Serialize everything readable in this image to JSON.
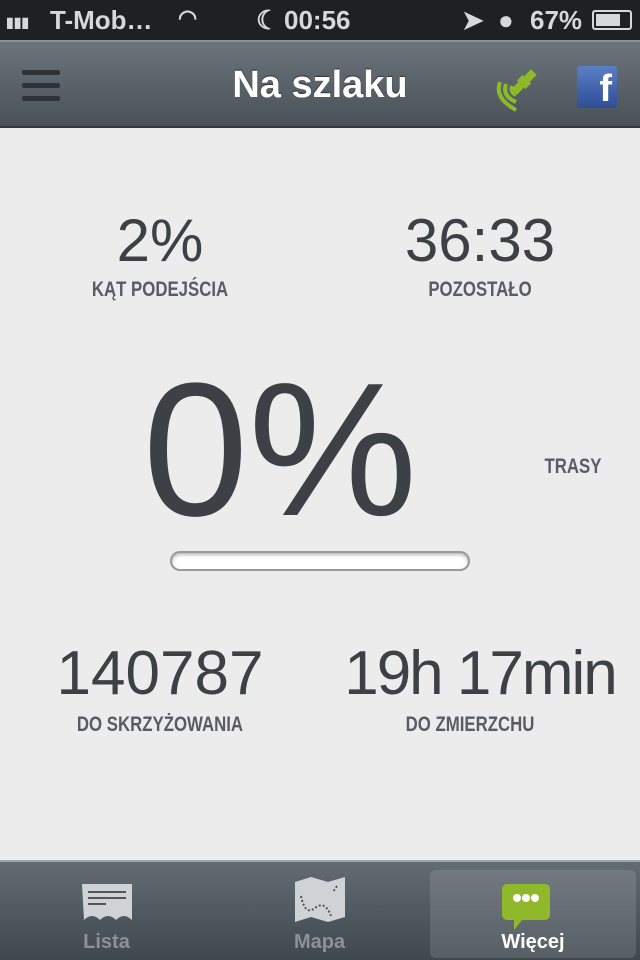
{
  "status_bar": {
    "carrier": "T-Mob…",
    "time": "00:56",
    "battery": "67%"
  },
  "nav": {
    "title": "Na szlaku"
  },
  "stats": {
    "angle": {
      "value": "2%",
      "label": "KĄT PODEJŚCIA"
    },
    "remaining": {
      "value": "36:33",
      "label": "POZOSTAŁO"
    },
    "progress": {
      "value": "0%",
      "label": "TRASY",
      "fraction": 0
    },
    "crossing": {
      "value": "140787",
      "label": "DO SKRZYŻOWANIA"
    },
    "sunset": {
      "value": "19h 17min",
      "label": "DO ZMIERZCHU"
    }
  },
  "tabs": [
    {
      "label": "Lista",
      "icon": "list-icon"
    },
    {
      "label": "Mapa",
      "icon": "map-icon"
    },
    {
      "label": "Więcej",
      "icon": "chat-bubble-icon",
      "active": true
    }
  ],
  "colors": {
    "accent": "#8fb82b",
    "facebook": "#3b5998"
  }
}
